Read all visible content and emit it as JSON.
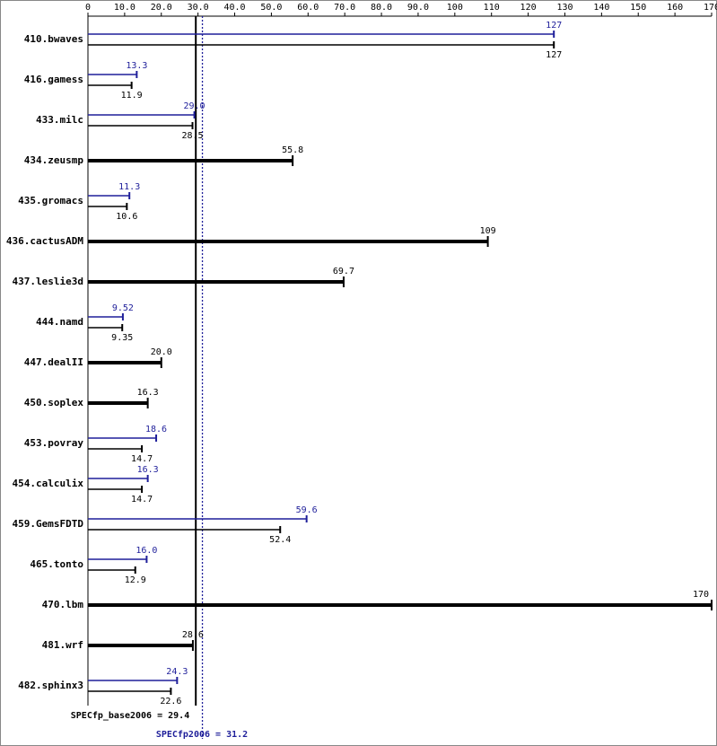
{
  "chart_data": {
    "type": "bar",
    "categories": [
      "410.bwaves",
      "416.gamess",
      "433.milc",
      "434.zeusmp",
      "435.gromacs",
      "436.cactusADM",
      "437.leslie3d",
      "444.namd",
      "447.dealII",
      "450.soplex",
      "453.povray",
      "454.calculix",
      "459.GemsFDTD",
      "465.tonto",
      "470.lbm",
      "481.wrf",
      "482.sphinx3"
    ],
    "series": [
      {
        "color": "#1f1f9a",
        "values": [
          127,
          13.3,
          29.0,
          null,
          11.3,
          null,
          null,
          9.52,
          null,
          null,
          18.6,
          16.3,
          59.6,
          16.0,
          null,
          null,
          24.3
        ],
        "value_labels": [
          "127",
          "13.3",
          "29.0",
          null,
          "11.3",
          null,
          null,
          "9.52",
          null,
          null,
          "18.6",
          "16.3",
          "59.6",
          "16.0",
          null,
          null,
          "24.3"
        ]
      },
      {
        "color": "#000000",
        "values": [
          127,
          11.9,
          28.5,
          55.8,
          10.6,
          109,
          69.7,
          9.35,
          20.0,
          16.3,
          14.7,
          14.7,
          52.4,
          12.9,
          170,
          28.6,
          22.6
        ],
        "value_labels": [
          "127",
          "11.9",
          "28.5",
          "55.8",
          "10.6",
          "109",
          "69.7",
          "9.35",
          "20.0",
          "16.3",
          "14.7",
          "14.7",
          "52.4",
          "12.9",
          "170",
          "28.6",
          "22.6"
        ]
      }
    ],
    "xlim": [
      0,
      170
    ],
    "xticks": [
      0,
      {
        "value": 10,
        "label": "10.0"
      },
      {
        "value": 20,
        "label": "20.0"
      },
      {
        "value": 30,
        "label": "30.0"
      },
      {
        "value": 40,
        "label": "40.0"
      },
      {
        "value": 50,
        "label": "50.0"
      },
      {
        "value": 60,
        "label": "60.0"
      },
      {
        "value": 70,
        "label": "70.0"
      },
      {
        "value": 80,
        "label": "80.0"
      },
      {
        "value": 90,
        "label": "90.0"
      },
      100,
      110,
      120,
      130,
      140,
      150,
      160,
      170
    ],
    "reference_lines": [
      {
        "label": "SPECfp_base2006 = 29.4",
        "value": 29.4,
        "color": "#000000"
      },
      {
        "label": "SPECfp2006 = 31.2",
        "value": 31.2,
        "color": "#1f1f9a"
      }
    ]
  }
}
